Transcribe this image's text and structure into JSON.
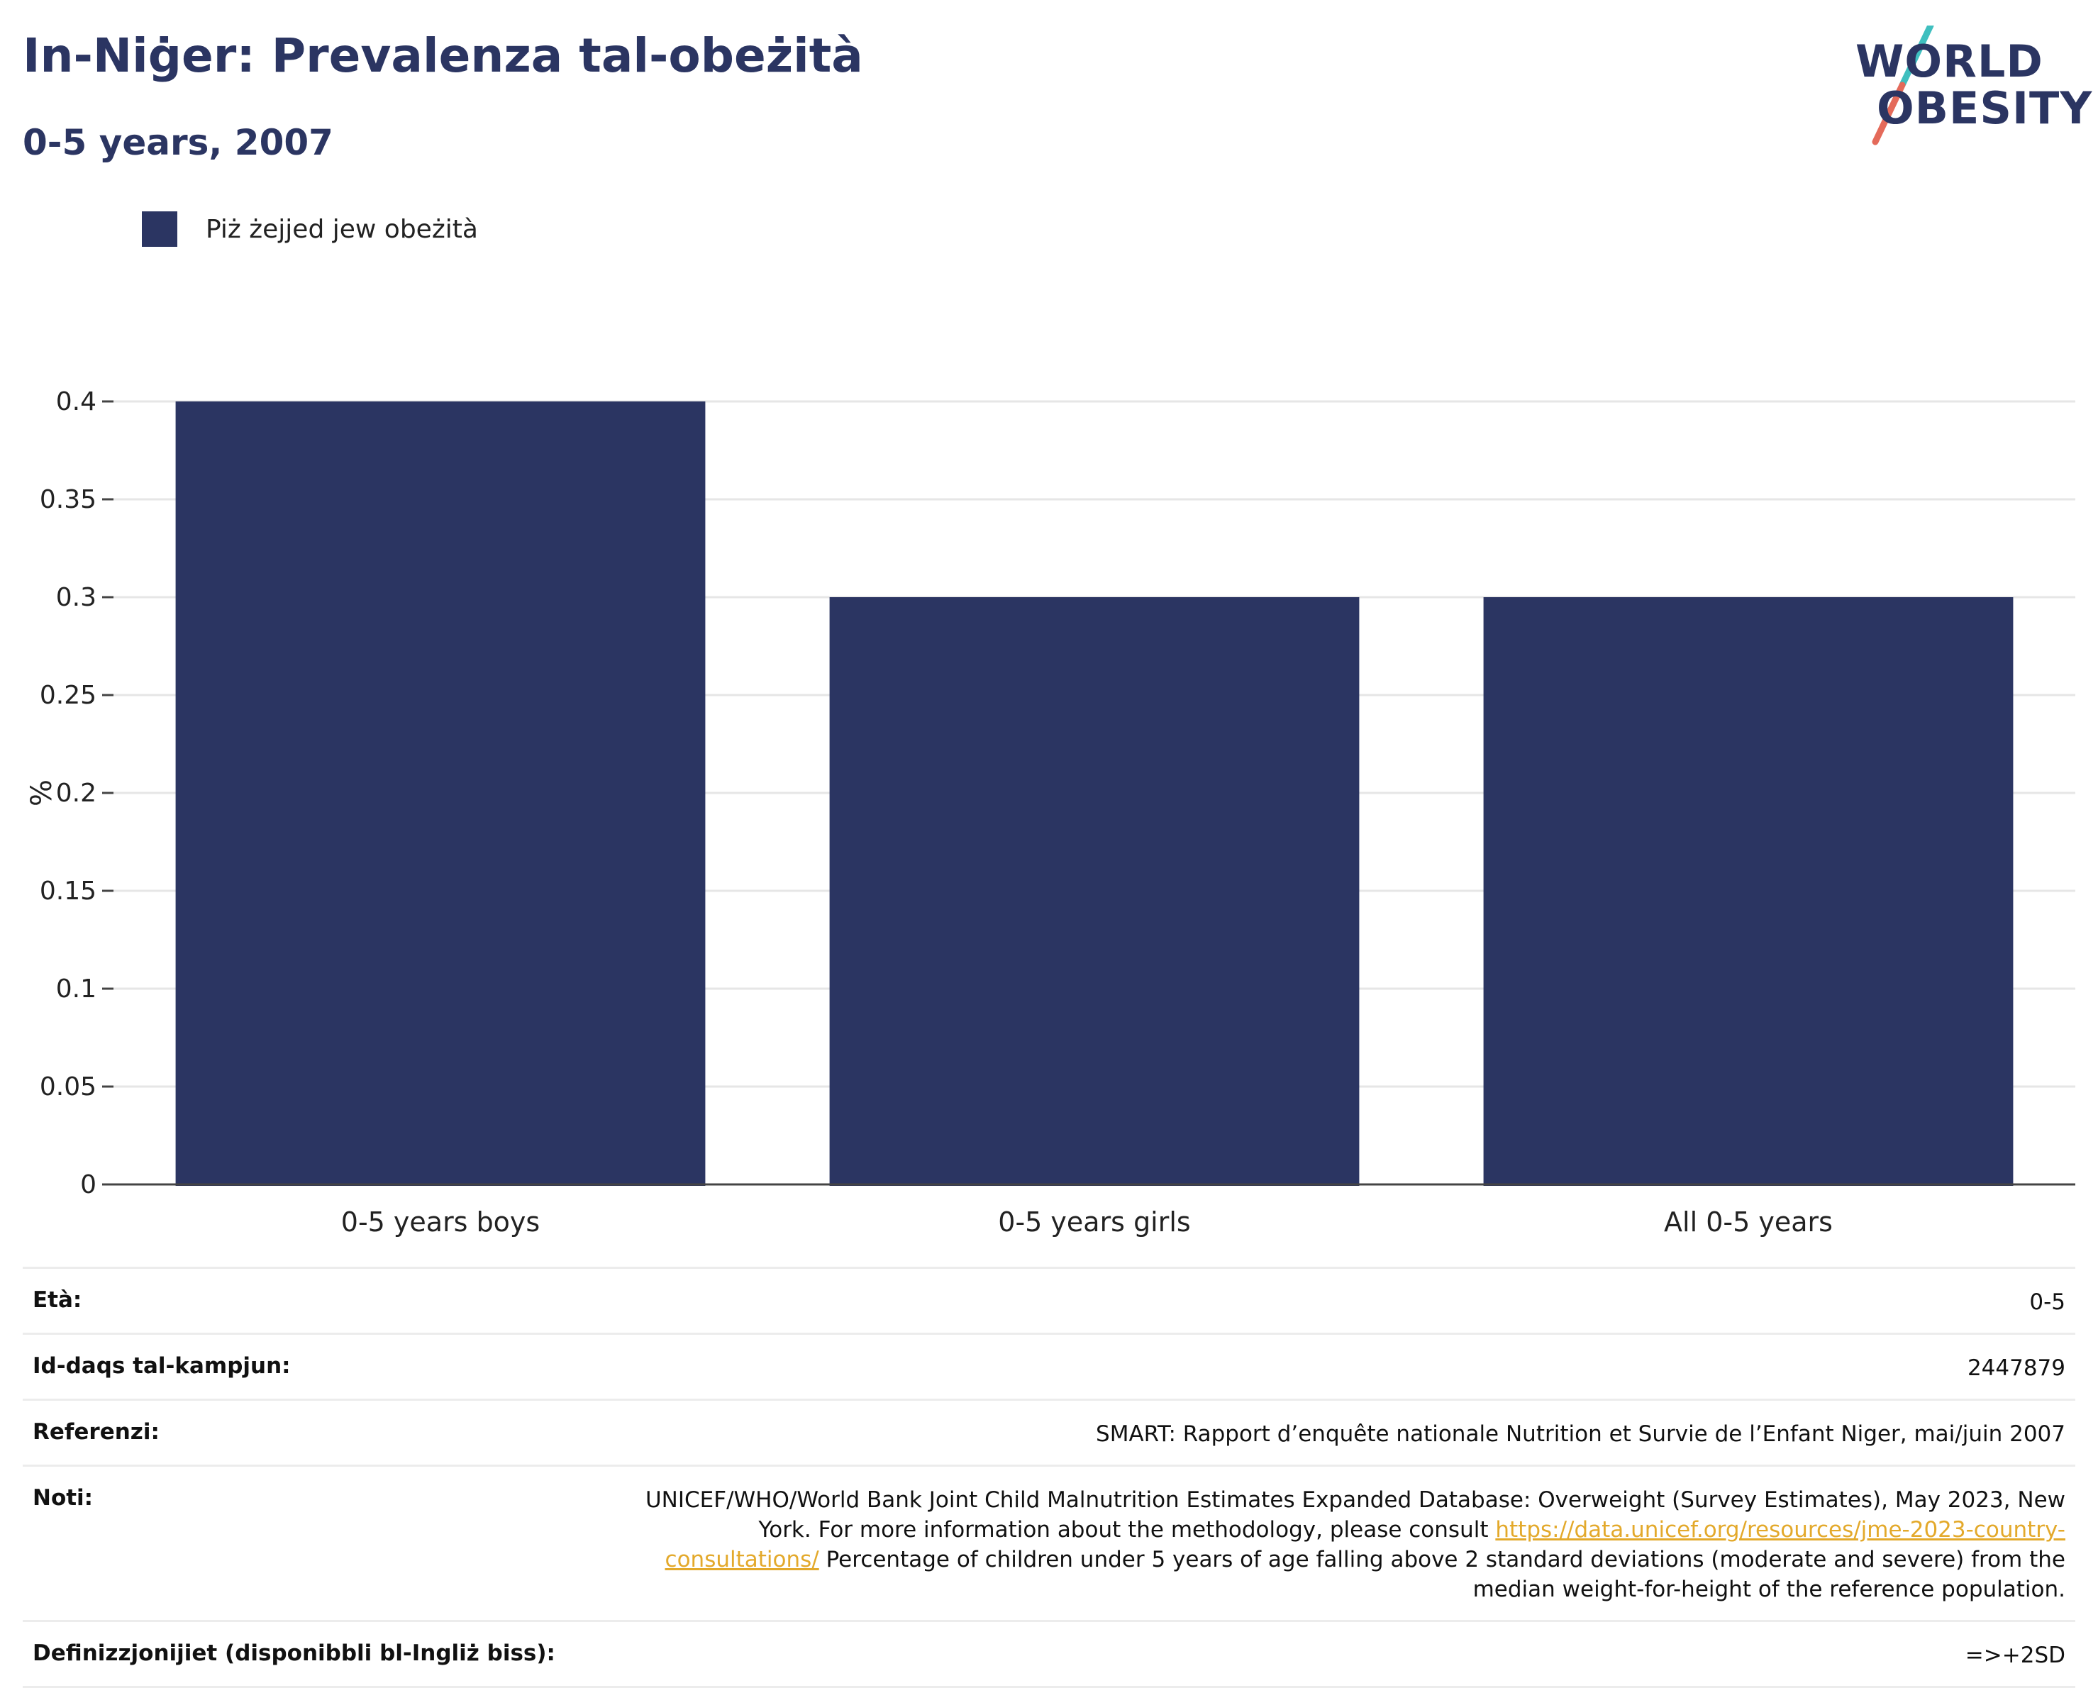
{
  "header": {
    "title": "In-Niġer: Prevalenza tal-obeżità",
    "subtitle": "0-5 years, 2007"
  },
  "logo": {
    "line1": "WORLD",
    "line2": "OBESITY",
    "accent_colors": [
      "#3fbfbf",
      "#e46a5a"
    ]
  },
  "legend": {
    "label": "Piż żejjed jew obeżità",
    "color": "#2b3562"
  },
  "chart_data": {
    "type": "bar",
    "categories": [
      "0-5 years boys",
      "0-5 years girls",
      "All 0-5 years"
    ],
    "series": [
      {
        "name": "Piż żejjed jew obeżità",
        "values": [
          0.4,
          0.3,
          0.3
        ],
        "color": "#2b3562"
      }
    ],
    "ylabel": "%",
    "ylim": [
      0,
      0.4
    ],
    "yticks": [
      0,
      0.05,
      0.1,
      0.15,
      0.2,
      0.25,
      0.3,
      0.35,
      0.4
    ],
    "ytick_labels": [
      "0",
      "0.05",
      "0.1",
      "0.15",
      "0.2",
      "0.25",
      "0.3",
      "0.35",
      "0.4"
    ],
    "grid": true,
    "legend_position": "top-left"
  },
  "meta": {
    "age_label": "Età:",
    "age_value": "0-5",
    "sample_label": "Id-daqs tal-kampjun:",
    "sample_value": "2447879",
    "refs_label": "Referenzi:",
    "refs_value": "SMART: Rapport d’enquête nationale Nutrition et Survie de l’Enfant Niger, mai/juin 2007",
    "notes_label": "Noti:",
    "notes_part1": "UNICEF/WHO/World Bank Joint Child Malnutrition Estimates Expanded Database: Overweight (Survey Estimates), May 2023, New York. For more information about the methodology, please consult ",
    "notes_link": "https://data.unicef.org/resources/jme-2023-country-consultations/",
    "notes_part2": " Percentage of children under 5 years of age falling above 2 standard deviations (moderate and severe) from the median weight-for-height of the reference population.",
    "defs_label": "Definizzjonijiet (disponibbli bl-Ingliż biss):",
    "defs_value": "=>+2SD"
  }
}
